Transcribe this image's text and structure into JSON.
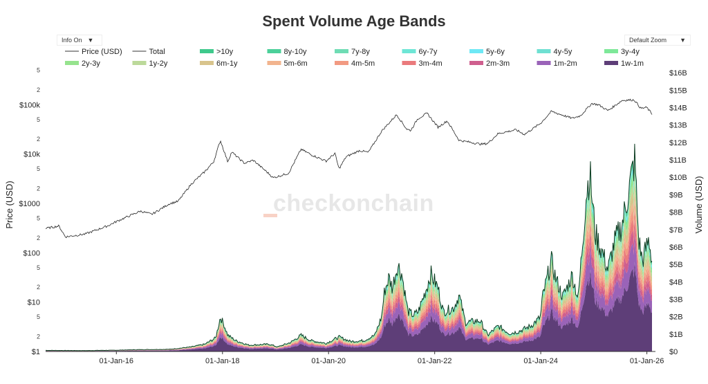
{
  "chart_data": {
    "type": "area",
    "title": "Spent Volume Age Bands",
    "controls": {
      "info_label": "Info On",
      "zoom_label": "Default Zoom"
    },
    "watermark": "checkonchain",
    "x_axis": {
      "ticks": [
        "01-Jan-16",
        "01-Jan-18",
        "01-Jan-20",
        "01-Jan-22",
        "01-Jan-24",
        "01-Jan-26"
      ],
      "range": [
        "2014-09-01",
        "2026-03-01"
      ]
    },
    "y_left": {
      "label": "Price (USD)",
      "scale": "log",
      "range": [
        1,
        1000000
      ],
      "major_ticks": [
        "$1",
        "$10",
        "$100",
        "$1000",
        "$10k",
        "$100k"
      ],
      "minor_ticks": [
        "2",
        "5"
      ]
    },
    "y_right": {
      "label": "Volume (USD)",
      "range": [
        0,
        17000000000
      ],
      "ticks": [
        "$0",
        "$1B",
        "$2B",
        "$3B",
        "$4B",
        "$5B",
        "$6B",
        "$7B",
        "$8B",
        "$9B",
        "$10B",
        "$11B",
        "$12B",
        "$13B",
        "$14B",
        "$15B",
        "$16B"
      ]
    },
    "legend": {
      "placement": "top",
      "items": [
        {
          "name": "Price (USD)",
          "color": "#333333",
          "kind": "line"
        },
        {
          "name": "Total",
          "color": "#333333",
          "kind": "line"
        },
        {
          "name": ">10y",
          "color": "#3fc98c",
          "kind": "area"
        },
        {
          "name": "8y-10y",
          "color": "#4cd09a",
          "kind": "area"
        },
        {
          "name": "7y-8y",
          "color": "#6fdcb4",
          "kind": "area"
        },
        {
          "name": "6y-7y",
          "color": "#6ee6d6",
          "kind": "area"
        },
        {
          "name": "5y-6y",
          "color": "#6ee8f5",
          "kind": "area"
        },
        {
          "name": "4y-5y",
          "color": "#6fe0d2",
          "kind": "area"
        },
        {
          "name": "3y-4y",
          "color": "#7ee899",
          "kind": "area"
        },
        {
          "name": "2y-3y",
          "color": "#96e38e",
          "kind": "area"
        },
        {
          "name": "1y-2y",
          "color": "#bcd99a",
          "kind": "area"
        },
        {
          "name": "6m-1y",
          "color": "#d8c48c",
          "kind": "area"
        },
        {
          "name": "5m-6m",
          "color": "#f2b48e",
          "kind": "area"
        },
        {
          "name": "4m-5m",
          "color": "#f29a82",
          "kind": "area"
        },
        {
          "name": "3m-4m",
          "color": "#ea7a7c",
          "kind": "area"
        },
        {
          "name": "2m-3m",
          "color": "#cf5f8e",
          "kind": "area"
        },
        {
          "name": "1m-2m",
          "color": "#9a63b8",
          "kind": "area"
        },
        {
          "name": "1w-1m",
          "color": "#5e3e78",
          "kind": "area"
        }
      ]
    },
    "price_points": [
      [
        "2014-09-01",
        310
      ],
      [
        "2014-12-01",
        350
      ],
      [
        "2015-01-15",
        210
      ],
      [
        "2015-06-01",
        240
      ],
      [
        "2015-11-01",
        350
      ],
      [
        "2016-01-01",
        430
      ],
      [
        "2016-06-15",
        700
      ],
      [
        "2016-09-01",
        600
      ],
      [
        "2017-01-01",
        990
      ],
      [
        "2017-03-01",
        1100
      ],
      [
        "2017-06-01",
        2500
      ],
      [
        "2017-09-01",
        4400
      ],
      [
        "2017-11-01",
        7000
      ],
      [
        "2017-12-17",
        19000
      ],
      [
        "2018-02-06",
        7000
      ],
      [
        "2018-03-05",
        11000
      ],
      [
        "2018-06-01",
        6500
      ],
      [
        "2018-08-01",
        7500
      ],
      [
        "2018-11-25",
        3800
      ],
      [
        "2018-12-15",
        3300
      ],
      [
        "2019-04-01",
        4100
      ],
      [
        "2019-06-26",
        12500
      ],
      [
        "2019-09-01",
        9800
      ],
      [
        "2019-12-15",
        7200
      ],
      [
        "2020-02-14",
        10300
      ],
      [
        "2020-03-13",
        5000
      ],
      [
        "2020-05-01",
        8800
      ],
      [
        "2020-08-01",
        11800
      ],
      [
        "2020-10-01",
        10800
      ],
      [
        "2020-12-31",
        29000
      ],
      [
        "2021-04-14",
        63000
      ],
      [
        "2021-06-22",
        32000
      ],
      [
        "2021-07-20",
        30000
      ],
      [
        "2021-09-06",
        52000
      ],
      [
        "2021-11-10",
        67000
      ],
      [
        "2022-01-24",
        35000
      ],
      [
        "2022-03-28",
        47000
      ],
      [
        "2022-06-18",
        19000
      ],
      [
        "2022-11-21",
        15800
      ],
      [
        "2023-01-01",
        16500
      ],
      [
        "2023-03-14",
        26000
      ],
      [
        "2023-07-14",
        31000
      ],
      [
        "2023-09-11",
        25000
      ],
      [
        "2023-12-31",
        42000
      ],
      [
        "2024-03-14",
        73000
      ],
      [
        "2024-08-05",
        53000
      ],
      [
        "2024-10-01",
        60000
      ],
      [
        "2024-12-17",
        106000
      ],
      [
        "2025-02-01",
        100000
      ],
      [
        "2025-04-08",
        76000
      ],
      [
        "2025-07-14",
        122000
      ],
      [
        "2025-08-14",
        124000
      ],
      [
        "2025-10-06",
        125000
      ],
      [
        "2025-11-21",
        84000
      ],
      [
        "2025-12-31",
        88000
      ],
      [
        "2026-02-05",
        65000
      ]
    ],
    "total_volume_points": [
      [
        "2014-09-01",
        60000000.0
      ],
      [
        "2015-06-01",
        50000000.0
      ],
      [
        "2016-01-01",
        70000000.0
      ],
      [
        "2016-06-01",
        100000000.0
      ],
      [
        "2017-01-01",
        120000000.0
      ],
      [
        "2017-06-01",
        250000000.0
      ],
      [
        "2017-09-01",
        400000000.0
      ],
      [
        "2017-11-15",
        750000000.0
      ],
      [
        "2017-12-17",
        1900000000.0
      ],
      [
        "2018-01-10",
        1500000000.0
      ],
      [
        "2018-02-06",
        900000000.0
      ],
      [
        "2018-04-01",
        600000000.0
      ],
      [
        "2018-07-01",
        350000000.0
      ],
      [
        "2018-11-20",
        400000000.0
      ],
      [
        "2019-01-15",
        250000000.0
      ],
      [
        "2019-04-15",
        500000000.0
      ],
      [
        "2019-06-26",
        900000000.0
      ],
      [
        "2019-09-01",
        600000000.0
      ],
      [
        "2019-12-15",
        450000000.0
      ],
      [
        "2020-03-13",
        800000000.0
      ],
      [
        "2020-06-01",
        550000000.0
      ],
      [
        "2020-09-01",
        600000000.0
      ],
      [
        "2020-11-15",
        900000000.0
      ],
      [
        "2020-12-31",
        1900000000.0
      ],
      [
        "2021-01-20",
        3300000000.0
      ],
      [
        "2021-02-20",
        4100000000.0
      ],
      [
        "2021-03-15",
        3500000000.0
      ],
      [
        "2021-04-20",
        4800000000.0
      ],
      [
        "2021-05-19",
        4300000000.0
      ],
      [
        "2021-07-01",
        2200000000.0
      ],
      [
        "2021-08-10",
        2000000000.0
      ],
      [
        "2021-09-10",
        2200000000.0
      ],
      [
        "2021-11-10",
        3600000000.0
      ],
      [
        "2021-12-04",
        4300000000.0
      ],
      [
        "2022-01-24",
        3500000000.0
      ],
      [
        "2022-03-01",
        2200000000.0
      ],
      [
        "2022-05-12",
        2400000000.0
      ],
      [
        "2022-06-18",
        3100000000.0
      ],
      [
        "2022-08-01",
        1600000000.0
      ],
      [
        "2022-11-09",
        1700000000.0
      ],
      [
        "2023-01-01",
        900000000.0
      ],
      [
        "2023-03-14",
        1400000000.0
      ],
      [
        "2023-06-01",
        1000000000.0
      ],
      [
        "2023-08-01",
        1100000000.0
      ],
      [
        "2023-10-24",
        1400000000.0
      ],
      [
        "2023-12-31",
        1900000000.0
      ],
      [
        "2024-01-11",
        2900000000.0
      ],
      [
        "2024-03-14",
        5000000000.0
      ],
      [
        "2024-04-15",
        4000000000.0
      ],
      [
        "2024-06-01",
        3000000000.0
      ],
      [
        "2024-08-05",
        4200000000.0
      ],
      [
        "2024-09-15",
        2900000000.0
      ],
      [
        "2024-11-12",
        8900000000.0
      ],
      [
        "2024-12-05",
        9800000000.0
      ],
      [
        "2025-01-10",
        6500000000.0
      ],
      [
        "2025-02-27",
        5500000000.0
      ],
      [
        "2025-04-08",
        4500000000.0
      ],
      [
        "2025-05-22",
        6000000000.0
      ],
      [
        "2025-07-14",
        7000000000.0
      ],
      [
        "2025-08-20",
        8500000000.0
      ],
      [
        "2025-10-10",
        10600000000.0
      ],
      [
        "2025-11-05",
        6200000000.0
      ],
      [
        "2025-12-01",
        5000000000.0
      ],
      [
        "2026-01-15",
        6200000000.0
      ],
      [
        "2026-02-05",
        5000000000.0
      ]
    ],
    "band_share_of_total": [
      {
        "name": "1w-1m",
        "share": 0.45
      },
      {
        "name": "1m-2m",
        "share": 0.14
      },
      {
        "name": "2m-3m",
        "share": 0.07
      },
      {
        "name": "3m-4m",
        "share": 0.06
      },
      {
        "name": "4m-5m",
        "share": 0.05
      },
      {
        "name": "5m-6m",
        "share": 0.04
      },
      {
        "name": "6m-1y",
        "share": 0.06
      },
      {
        "name": "1y-2y",
        "share": 0.04
      },
      {
        "name": "2y-3y",
        "share": 0.035
      },
      {
        "name": "3y-4y",
        "share": 0.025
      },
      {
        "name": "4y-5y",
        "share": 0.015
      },
      {
        "name": "5y-6y",
        "share": 0.01
      },
      {
        "name": "6y-7y",
        "share": 0.008
      },
      {
        "name": "7y-8y",
        "share": 0.008
      },
      {
        "name": "8y-10y",
        "share": 0.014
      },
      {
        "name": ">10y",
        "share": 0.016
      }
    ]
  }
}
